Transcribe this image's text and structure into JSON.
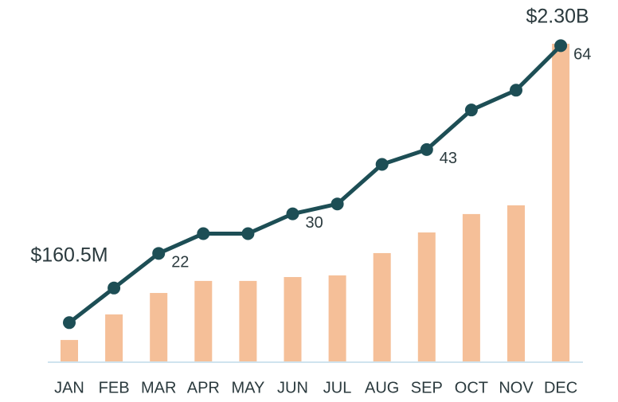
{
  "chart_data": {
    "type": "bar-line",
    "categories": [
      "JAN",
      "FEB",
      "MAR",
      "APR",
      "MAY",
      "JUN",
      "JUL",
      "AUG",
      "SEP",
      "OCT",
      "NOV",
      "DEC"
    ],
    "series": [
      {
        "type": "bar",
        "axis": "y2",
        "color": "#f5bf98",
        "values": [
          160500000,
          345000000,
          500000000,
          587000000,
          587000000,
          615000000,
          627000000,
          788000000,
          937000000,
          1070000000,
          1133000000,
          2300000000
        ],
        "value_labels": [
          "$160.5M",
          null,
          null,
          null,
          null,
          null,
          null,
          null,
          null,
          null,
          null,
          "$2.30B"
        ]
      },
      {
        "type": "line",
        "axis": "y",
        "color": "#1d4e55",
        "values": [
          8,
          15,
          22,
          26,
          26,
          30,
          32,
          40,
          43,
          51,
          55,
          64
        ],
        "value_labels": [
          null,
          null,
          "22",
          null,
          null,
          "30",
          null,
          null,
          "43",
          null,
          null,
          "64"
        ]
      }
    ],
    "ylim": [
      0,
      66.8
    ],
    "y2lim": [
      0,
      2386000000
    ]
  }
}
